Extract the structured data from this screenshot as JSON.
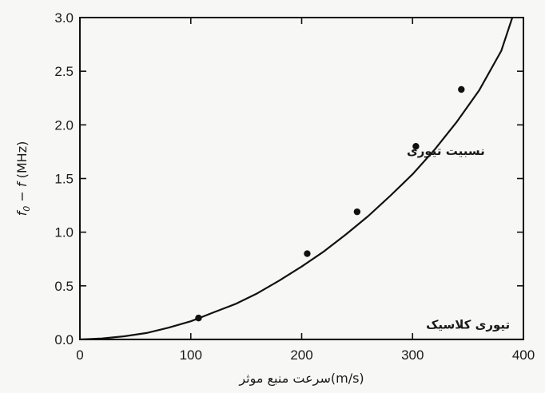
{
  "chart_data": {
    "type": "line",
    "xlabel": "سرعت منبع موثر(m/s)",
    "ylabel": "f0 − f (MHz)",
    "ylabel_parts": {
      "f0": "f",
      "sub": "0",
      "rest": " − ",
      "f": "f",
      "unit": " (MHz)"
    },
    "xlim": [
      0,
      400
    ],
    "ylim": [
      0,
      3.0
    ],
    "x_ticks": [
      0,
      100,
      200,
      300,
      400
    ],
    "x_tick_labels": [
      "0",
      "100",
      "200",
      "300",
      "400"
    ],
    "y_ticks": [
      0,
      0.5,
      1.0,
      1.5,
      2.0,
      2.5,
      3.0
    ],
    "y_tick_labels": [
      "0.0",
      "0.5",
      "1.0",
      "1.5",
      "2.0",
      "2.5",
      "3.0"
    ],
    "grid": false,
    "series": [
      {
        "name": "نسبیت تیوری",
        "kind": "curve",
        "color": "#111111",
        "x": [
          0,
          20,
          40,
          60,
          80,
          100,
          120,
          140,
          160,
          180,
          200,
          220,
          240,
          260,
          280,
          300,
          320,
          340,
          360,
          380,
          390
        ],
        "values": [
          0,
          0.01,
          0.03,
          0.06,
          0.11,
          0.17,
          0.25,
          0.33,
          0.43,
          0.55,
          0.68,
          0.82,
          0.98,
          1.15,
          1.34,
          1.54,
          1.77,
          2.03,
          2.32,
          2.69,
          3.0
        ]
      },
      {
        "name": "تیوری کلاسیک",
        "kind": "curve",
        "color": "#111111",
        "x": [
          0,
          400
        ],
        "values": [
          0,
          0
        ]
      },
      {
        "name": "",
        "kind": "points",
        "color": "#111111",
        "x": [
          107,
          205,
          250,
          303,
          344
        ],
        "values": [
          0.2,
          0.8,
          1.19,
          1.8,
          2.33
        ]
      }
    ],
    "annotations": [
      {
        "text": "نسبیت تیوری",
        "x": 330,
        "y": 1.72
      },
      {
        "text": "تیوری کلاسیک",
        "x": 350,
        "y": 0.1
      }
    ]
  }
}
